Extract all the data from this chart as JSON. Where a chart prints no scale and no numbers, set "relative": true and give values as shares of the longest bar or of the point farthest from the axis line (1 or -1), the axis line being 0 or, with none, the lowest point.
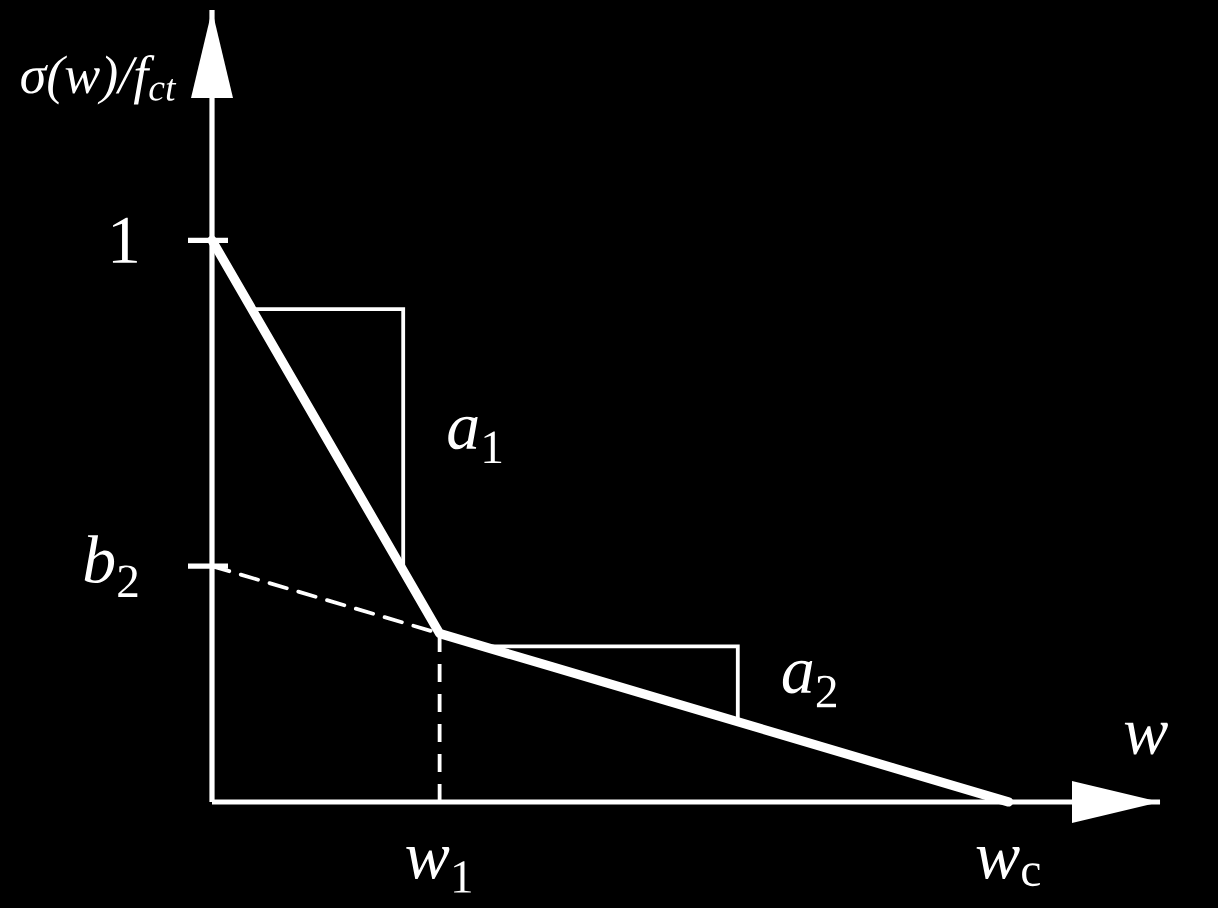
{
  "chart_data": {
    "type": "line",
    "relative": true,
    "ylabel": "σ(w)/f$_{ct}$",
    "xlabel": "w",
    "categories": [
      null,
      null,
      "*w*$_{1}$",
      null,
      null,
      null,
      null,
      "*w*$_{c}$"
    ],
    "series": [
      {
        "color": "#ffffff",
        "values": [
          1,
          0.65,
          0.3,
          0.24,
          0.18,
          0.12,
          0.06,
          0
        ],
        "line_style": "solid"
      },
      {
        "color": "#ffffff",
        "values": [
          0.42,
          0.36,
          0.3,
          null,
          null,
          null,
          null,
          null
        ],
        "line_style": "dashed"
      }
    ],
    "ref_lines": [
      {
        "axis": "x",
        "value": "*w*$_{1}$",
        "color": "#ffffff",
        "line_style": "dashed"
      }
    ],
    "annotations": [
      "1",
      "*b*$_{2}$",
      "*a*$_{1}$",
      "*a*$_{2}$"
    ]
  }
}
